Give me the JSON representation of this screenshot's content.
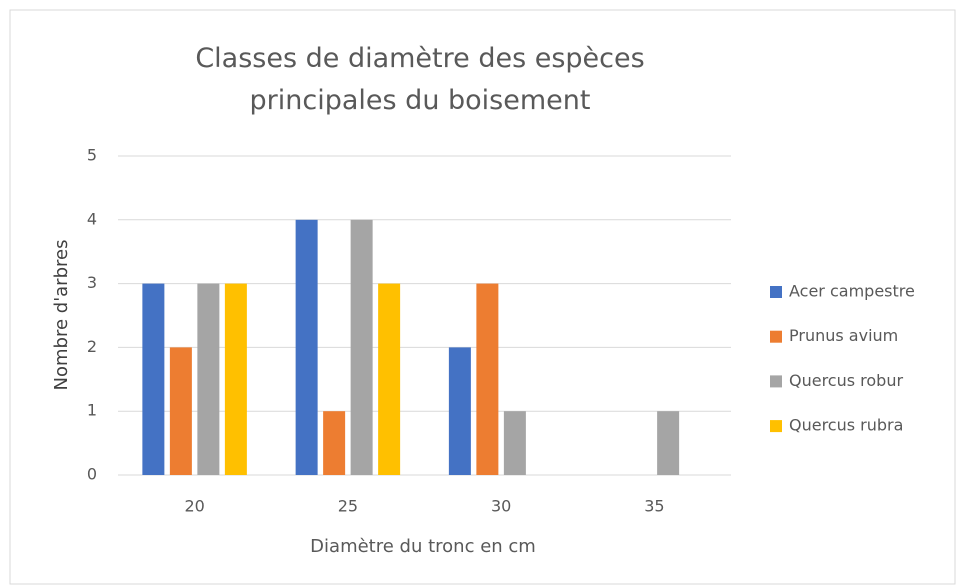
{
  "chart_data": {
    "type": "bar",
    "title": "Classes de diamètre des espèces principales du boisement",
    "xlabel": "Diamètre du tronc en cm",
    "ylabel": "Nombre d'arbres",
    "categories": [
      "20",
      "25",
      "30",
      "35"
    ],
    "series": [
      {
        "name": "Acer campestre",
        "color": "#4472c4",
        "values": [
          3,
          4,
          2,
          0
        ]
      },
      {
        "name": "Prunus avium",
        "color": "#ed7d31",
        "values": [
          2,
          1,
          3,
          0
        ]
      },
      {
        "name": "Quercus robur",
        "color": "#a5a5a5",
        "values": [
          3,
          4,
          1,
          1
        ]
      },
      {
        "name": "Quercus rubra",
        "color": "#ffc000",
        "values": [
          3,
          3,
          0,
          0
        ]
      }
    ],
    "ylim": [
      0,
      5
    ],
    "yticks": [
      0,
      1,
      2,
      3,
      4,
      5
    ],
    "grid": true,
    "legend": "right"
  }
}
